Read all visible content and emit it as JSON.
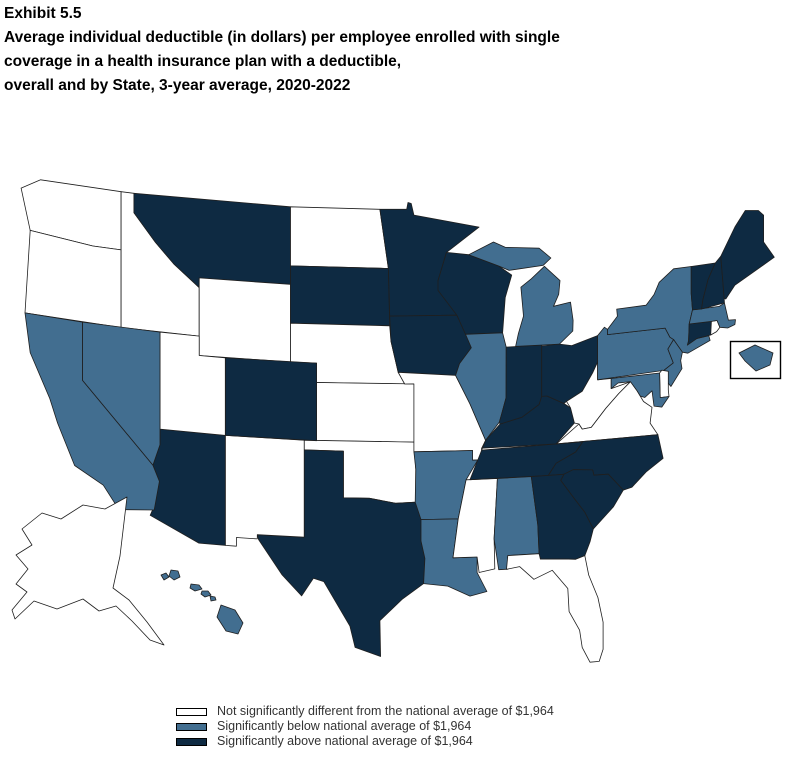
{
  "title": {
    "exhibit": "Exhibit 5.5",
    "lines": [
      "Average individual deductible (in dollars) per employee enrolled with single",
      "coverage in a health insurance plan with a deductible,",
      "overall and by State, 3-year average, 2020-2022"
    ]
  },
  "national_average": "$1,964",
  "legend": [
    {
      "key": "not_different",
      "label": "Not significantly different from the national average of $1,964",
      "color": "#ffffff"
    },
    {
      "key": "below",
      "label": "Significantly below national average of $1,964",
      "color": "#426e90"
    },
    {
      "key": "above",
      "label": "Significantly above national average of $1,964",
      "color": "#0e2a42"
    }
  ],
  "map": {
    "region": "United States",
    "border_color": "#1f1f1f",
    "background": "#ffffff",
    "dc_inset": true
  },
  "chart_data": {
    "type": "choropleth",
    "title": "Average individual deductible (in dollars) per employee enrolled with single coverage in a health insurance plan with a deductible, overall and by State, 3-year average, 2020-2022",
    "national_average_usd": 1964,
    "classes": [
      "not_different",
      "below",
      "above"
    ],
    "states": [
      {
        "code": "WA",
        "name": "Washington",
        "category": "not_different"
      },
      {
        "code": "OR",
        "name": "Oregon",
        "category": "not_different"
      },
      {
        "code": "ID",
        "name": "Idaho",
        "category": "not_different"
      },
      {
        "code": "MT",
        "name": "Montana",
        "category": "above"
      },
      {
        "code": "WY",
        "name": "Wyoming",
        "category": "not_different"
      },
      {
        "code": "ND",
        "name": "North Dakota",
        "category": "not_different"
      },
      {
        "code": "SD",
        "name": "South Dakota",
        "category": "above"
      },
      {
        "code": "NE",
        "name": "Nebraska",
        "category": "not_different"
      },
      {
        "code": "KS",
        "name": "Kansas",
        "category": "not_different"
      },
      {
        "code": "OK",
        "name": "Oklahoma",
        "category": "not_different"
      },
      {
        "code": "TX",
        "name": "Texas",
        "category": "above"
      },
      {
        "code": "NM",
        "name": "New Mexico",
        "category": "not_different"
      },
      {
        "code": "AZ",
        "name": "Arizona",
        "category": "above"
      },
      {
        "code": "CO",
        "name": "Colorado",
        "category": "above"
      },
      {
        "code": "UT",
        "name": "Utah",
        "category": "not_different"
      },
      {
        "code": "NV",
        "name": "Nevada",
        "category": "below"
      },
      {
        "code": "CA",
        "name": "California",
        "category": "below"
      },
      {
        "code": "MN",
        "name": "Minnesota",
        "category": "above"
      },
      {
        "code": "IA",
        "name": "Iowa",
        "category": "above"
      },
      {
        "code": "MO",
        "name": "Missouri",
        "category": "not_different"
      },
      {
        "code": "AR",
        "name": "Arkansas",
        "category": "below"
      },
      {
        "code": "LA",
        "name": "Louisiana",
        "category": "below"
      },
      {
        "code": "MS",
        "name": "Mississippi",
        "category": "not_different"
      },
      {
        "code": "AL",
        "name": "Alabama",
        "category": "below"
      },
      {
        "code": "TN",
        "name": "Tennessee",
        "category": "above"
      },
      {
        "code": "KY",
        "name": "Kentucky",
        "category": "above"
      },
      {
        "code": "WI",
        "name": "Wisconsin",
        "category": "above"
      },
      {
        "code": "IL",
        "name": "Illinois",
        "category": "below"
      },
      {
        "code": "IN",
        "name": "Indiana",
        "category": "above"
      },
      {
        "code": "MI",
        "name": "Michigan",
        "category": "below"
      },
      {
        "code": "OH",
        "name": "Ohio",
        "category": "above"
      },
      {
        "code": "WV",
        "name": "West Virginia",
        "category": "not_different"
      },
      {
        "code": "VA",
        "name": "Virginia",
        "category": "not_different"
      },
      {
        "code": "NC",
        "name": "North Carolina",
        "category": "above"
      },
      {
        "code": "SC",
        "name": "South Carolina",
        "category": "above"
      },
      {
        "code": "GA",
        "name": "Georgia",
        "category": "above"
      },
      {
        "code": "FL",
        "name": "Florida",
        "category": "not_different"
      },
      {
        "code": "PA",
        "name": "Pennsylvania",
        "category": "below"
      },
      {
        "code": "NY",
        "name": "New York",
        "category": "below"
      },
      {
        "code": "NJ",
        "name": "New Jersey",
        "category": "below"
      },
      {
        "code": "DE",
        "name": "Delaware",
        "category": "not_different"
      },
      {
        "code": "MD",
        "name": "Maryland",
        "category": "below"
      },
      {
        "code": "CT",
        "name": "Connecticut",
        "category": "above"
      },
      {
        "code": "RI",
        "name": "Rhode Island",
        "category": "not_different"
      },
      {
        "code": "MA",
        "name": "Massachusetts",
        "category": "below"
      },
      {
        "code": "VT",
        "name": "Vermont",
        "category": "above"
      },
      {
        "code": "NH",
        "name": "New Hampshire",
        "category": "above"
      },
      {
        "code": "ME",
        "name": "Maine",
        "category": "above"
      },
      {
        "code": "AK",
        "name": "Alaska",
        "category": "not_different"
      },
      {
        "code": "HI",
        "name": "Hawaii",
        "category": "below"
      },
      {
        "code": "DC",
        "name": "District of Columbia",
        "category": "below"
      }
    ]
  }
}
